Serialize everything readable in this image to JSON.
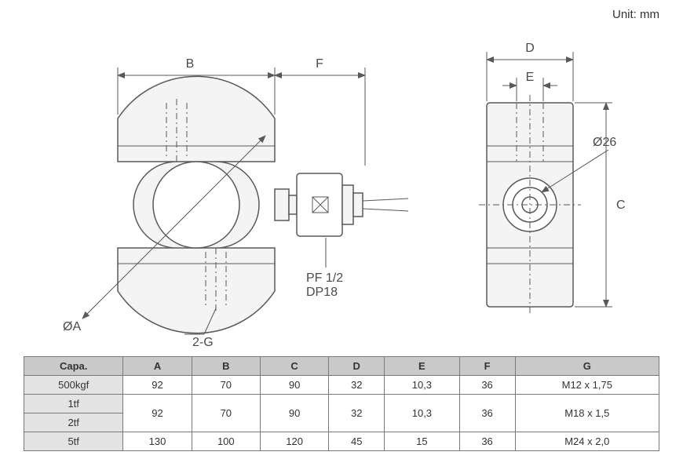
{
  "unit_label": "Unit: mm",
  "diagram": {
    "front": {
      "dim_B": "B",
      "dim_F": "F",
      "dim_A": "ØA",
      "dim_2G": "2-G",
      "note_PF": "PF 1/2",
      "note_DP": "DP18"
    },
    "side": {
      "dim_D": "D",
      "dim_E": "E",
      "dim_C": "C",
      "dim_26": "Ø26"
    },
    "colors": {
      "stroke": "#595959",
      "fill_light": "#f4f4f4",
      "fill_white": "#ffffff",
      "text": "#4a4a4a"
    }
  },
  "table": {
    "headers": [
      "Capa.",
      "A",
      "B",
      "C",
      "D",
      "E",
      "F",
      "G"
    ],
    "rows": [
      {
        "capa": "500kgf",
        "A": "92",
        "B": "70",
        "C": "90",
        "D": "32",
        "E": "10,3",
        "F": "36",
        "G": "M12 x 1,75"
      },
      {
        "capa": "1tf",
        "A": "92",
        "B": "70",
        "C": "90",
        "D": "32",
        "E": "10,3",
        "F": "36",
        "G": "M18 x 1,5"
      },
      {
        "capa": "2tf",
        "A": "",
        "B": "",
        "C": "",
        "D": "",
        "E": "",
        "F": "",
        "G": ""
      },
      {
        "capa": "5tf",
        "A": "130",
        "B": "100",
        "C": "120",
        "D": "45",
        "E": "15",
        "F": "36",
        "G": "M24 x 2,0"
      }
    ],
    "merge_row_1_2": true
  }
}
